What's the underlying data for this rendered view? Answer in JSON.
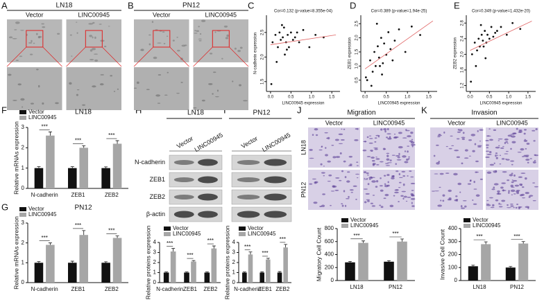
{
  "panel_labels": [
    "A",
    "B",
    "C",
    "D",
    "E",
    "F",
    "G",
    "H",
    "I",
    "J",
    "K"
  ],
  "image_panels": [
    {
      "title": "LN18",
      "columns": [
        "Vector",
        "LINC00945"
      ]
    },
    {
      "title": "PN12",
      "columns": [
        "Vector",
        "LINC00945"
      ]
    }
  ],
  "blots": [
    {
      "title": "LN18",
      "lanes": [
        "Vector",
        "LINC00945"
      ],
      "rows": [
        "N-cadherin",
        "ZEB1",
        "ZEB2",
        "β-actin"
      ]
    },
    {
      "title": "PN12",
      "lanes": [
        "Vector",
        "LINC00945"
      ]
    }
  ],
  "assays": [
    {
      "title": "Migration",
      "columns": [
        "Vector",
        "LINC00945"
      ],
      "rows": [
        "LN18",
        "PN12"
      ]
    },
    {
      "title": "Invasion",
      "columns": [
        "Vector",
        "LINC00945"
      ]
    }
  ],
  "chart_data": [
    {
      "type": "scatter",
      "title": "Cor=0.132 (p-value=8.355e-04)",
      "xlabel": "LINC00945 expression",
      "ylabel": "N-cadherin expression",
      "x": [
        0.05,
        0.12,
        0.18,
        0.22,
        0.25,
        0.3,
        0.33,
        0.38,
        0.42,
        0.45,
        0.5,
        0.55,
        0.6,
        0.7,
        0.8,
        0.95,
        1.1,
        1.3,
        0.15,
        0.35,
        0.28,
        0.4,
        0.02,
        0.65
      ],
      "y": [
        2.3,
        2.45,
        2.2,
        2.5,
        2.35,
        2.4,
        2.6,
        2.3,
        2.45,
        2.2,
        2.5,
        2.35,
        2.4,
        2.3,
        2.55,
        2.2,
        2.45,
        2.4,
        1.9,
        2.05,
        2.65,
        2.15,
        1.45,
        2.5
      ],
      "fit_x": [
        0,
        1.6
      ],
      "fit_y": [
        2.25,
        2.45
      ],
      "color": "#111111",
      "fit_color": "#e06060",
      "xlim": [
        -0.1,
        1.7
      ],
      "ylim": [
        1.3,
        2.85
      ],
      "xticks": [
        {
          "value": 0,
          "label": "0.0"
        },
        0.5,
        {
          "value": 1,
          "label": "1.0"
        },
        1.5
      ],
      "yticks": [
        1.5,
        {
          "value": 2,
          "label": "2.0"
        },
        2.5
      ]
    },
    {
      "type": "scatter",
      "title": "Cor=0.389 (p-value=1.94e-25)",
      "xlabel": "LINC00945 expression",
      "ylabel": "ZEB1 expression",
      "x": [
        0.05,
        0.12,
        0.18,
        0.22,
        0.25,
        0.3,
        0.33,
        0.38,
        0.42,
        0.45,
        0.5,
        0.55,
        0.6,
        0.7,
        0.8,
        0.95,
        1.1,
        1.3,
        0.15,
        0.35,
        0.28,
        0.4,
        0.02,
        0.65
      ],
      "y": [
        0.5,
        1.2,
        0.8,
        1.5,
        1.0,
        1.7,
        1.3,
        2.0,
        1.1,
        1.8,
        1.4,
        2.2,
        1.6,
        1.9,
        2.3,
        1.5,
        2.4,
        2.1,
        0.3,
        1.0,
        2.5,
        0.7,
        0.6,
        1.2
      ],
      "fit_x": [
        0,
        1.6
      ],
      "fit_y": [
        0.9,
        2.6
      ],
      "color": "#111111",
      "fit_color": "#e06060",
      "xlim": [
        -0.1,
        1.7
      ],
      "ylim": [
        0.1,
        2.8
      ],
      "xticks": [
        {
          "value": 0,
          "label": "0.0"
        },
        0.5,
        {
          "value": 1,
          "label": "1.0"
        },
        1.5
      ],
      "yticks": [
        0.5,
        {
          "value": 1,
          "label": "1.0"
        },
        1.5,
        {
          "value": 2,
          "label": "2.0"
        },
        2.5
      ]
    },
    {
      "type": "scatter",
      "title": "Cor=0.349 (p-value=1.432e-20)",
      "xlabel": "LINC00945 expression",
      "ylabel": "ZEB2 expression",
      "x": [
        0.05,
        0.12,
        0.18,
        0.22,
        0.25,
        0.3,
        0.33,
        0.38,
        0.42,
        0.45,
        0.5,
        0.55,
        0.6,
        0.7,
        0.8,
        0.95,
        1.1,
        1.3,
        0.15,
        0.35,
        0.28,
        0.4,
        0.02,
        0.65
      ],
      "y": [
        2.0,
        2.3,
        2.1,
        2.4,
        2.2,
        2.5,
        2.35,
        2.6,
        2.3,
        2.5,
        2.4,
        2.7,
        2.45,
        2.6,
        2.7,
        2.5,
        2.8,
        2.65,
        1.7,
        2.2,
        2.75,
        1.9,
        1.3,
        2.55
      ],
      "fit_x": [
        0,
        1.6
      ],
      "fit_y": [
        2.1,
        2.85
      ],
      "color": "#111111",
      "fit_color": "#e06060",
      "xlim": [
        -0.1,
        1.7
      ],
      "ylim": [
        1.05,
        3.0
      ],
      "xticks": [
        {
          "value": 0,
          "label": "0.0"
        },
        0.5,
        {
          "value": 1,
          "label": "1.0"
        },
        1.5
      ],
      "yticks": [
        1.2,
        1.6,
        {
          "value": 2,
          "label": "2.0"
        },
        2.4,
        2.8
      ]
    },
    {
      "type": "bar",
      "title": "LN18",
      "ylabel": "Relative mRNAs expression",
      "categories": [
        "N-cadherin",
        "ZEB1",
        "ZEB2"
      ],
      "series": [
        {
          "name": "Vector",
          "color": "#111111",
          "values": [
            1,
            1,
            1
          ],
          "errors": [
            0.07,
            0.07,
            0.06
          ]
        },
        {
          "name": "LINC00945",
          "color": "#a6a6a6",
          "values": [
            2.6,
            2.0,
            2.2
          ],
          "errors": [
            0.18,
            0.1,
            0.15
          ]
        }
      ],
      "annotations": [
        "***",
        "***",
        "***"
      ],
      "ylim": [
        0,
        3
      ],
      "yticks": [
        0,
        1,
        2,
        3
      ]
    },
    {
      "type": "bar",
      "title": "PN12",
      "ylabel": "Relative mRNAs expression",
      "categories": [
        "N-cadherin",
        "ZEB1",
        "ZEB2"
      ],
      "series": [
        {
          "name": "Vector",
          "color": "#111111",
          "values": [
            1,
            1,
            1
          ],
          "errors": [
            0.06,
            0.08,
            0.05
          ]
        },
        {
          "name": "LINC00945",
          "color": "#a6a6a6",
          "values": [
            1.9,
            2.4,
            2.25
          ],
          "errors": [
            0.1,
            0.22,
            0.1
          ]
        }
      ],
      "annotations": [
        "***",
        "***",
        "***"
      ],
      "ylim": [
        0,
        3
      ],
      "yticks": [
        0,
        1,
        2,
        3
      ]
    },
    {
      "type": "bar",
      "ylabel": "Relative proteins expression",
      "categories": [
        "N-cadherin",
        "ZEB1",
        "ZEB2"
      ],
      "series": [
        {
          "name": "Vector",
          "color": "#111111",
          "values": [
            1,
            1,
            1
          ],
          "errors": [
            0.06,
            0.06,
            0.06
          ]
        },
        {
          "name": "LINC00945",
          "color": "#a6a6a6",
          "values": [
            3.1,
            2.1,
            3.4
          ],
          "errors": [
            0.3,
            0.1,
            0.25
          ]
        }
      ],
      "annotations": [
        "***",
        "***",
        "***"
      ],
      "ylim": [
        0,
        4
      ],
      "yticks": [
        0,
        1,
        2,
        3,
        4
      ]
    },
    {
      "type": "bar",
      "ylabel": "Relative proteins expression",
      "categories": [
        "N-cadherin",
        "ZEB1",
        "ZEB2"
      ],
      "series": [
        {
          "name": "Vector",
          "color": "#111111",
          "values": [
            1,
            1,
            1
          ],
          "errors": [
            0.06,
            0.08,
            0.1
          ]
        },
        {
          "name": "LINC00945",
          "color": "#a6a6a6",
          "values": [
            2.8,
            2.3,
            3.5
          ],
          "errors": [
            0.25,
            0.12,
            0.3
          ]
        }
      ],
      "annotations": [
        "***",
        "***",
        "***"
      ],
      "ylim": [
        0,
        4
      ],
      "yticks": [
        0,
        1,
        2,
        3,
        4
      ]
    },
    {
      "type": "bar",
      "ylabel": "Migratory Cell Count",
      "categories": [
        "LN18",
        "PN12"
      ],
      "series": [
        {
          "name": "Vector",
          "color": "#111111",
          "values": [
            280,
            290
          ],
          "errors": [
            15,
            15
          ]
        },
        {
          "name": "LINC00945",
          "color": "#a6a6a6",
          "values": [
            580,
            600
          ],
          "errors": [
            30,
            40
          ]
        }
      ],
      "annotations": [
        "***",
        "***"
      ],
      "ylim": [
        0,
        800
      ],
      "yticks": [
        0,
        200,
        400,
        600,
        800
      ]
    },
    {
      "type": "bar",
      "ylabel": "Invasive Cell Count",
      "categories": [
        "LN18",
        "PN12"
      ],
      "series": [
        {
          "name": "Vector",
          "color": "#111111",
          "values": [
            110,
            100
          ],
          "errors": [
            8,
            8
          ]
        },
        {
          "name": "LINC00945",
          "color": "#a6a6a6",
          "values": [
            280,
            285
          ],
          "errors": [
            18,
            15
          ]
        }
      ],
      "annotations": [
        "***",
        "***"
      ],
      "ylim": [
        0,
        400
      ],
      "yticks": [
        0,
        100,
        200,
        300,
        400
      ]
    }
  ]
}
